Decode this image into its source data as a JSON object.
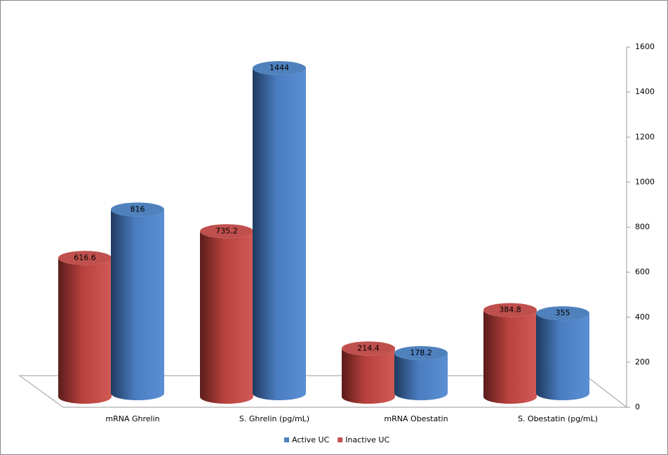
{
  "chart_data": {
    "type": "bar3d",
    "categories": [
      "mRNA Ghrelin",
      "S. Ghrelin (pg/mL)",
      "mRNA Obestatin",
      "S. Obestatin (pg/mL)"
    ],
    "series": [
      {
        "name": "Active UC",
        "color": "#4f81bd",
        "values": [
          816,
          1444,
          178.2,
          355
        ]
      },
      {
        "name": "Inactive UC",
        "color": "#c0504d",
        "values": [
          616.6,
          735.2,
          214.4,
          384.8
        ]
      }
    ],
    "ylim": [
      0,
      1600
    ],
    "yticks": [
      0,
      200,
      400,
      600,
      800,
      1000,
      1200,
      1400,
      1600
    ],
    "legend": "bottom"
  }
}
